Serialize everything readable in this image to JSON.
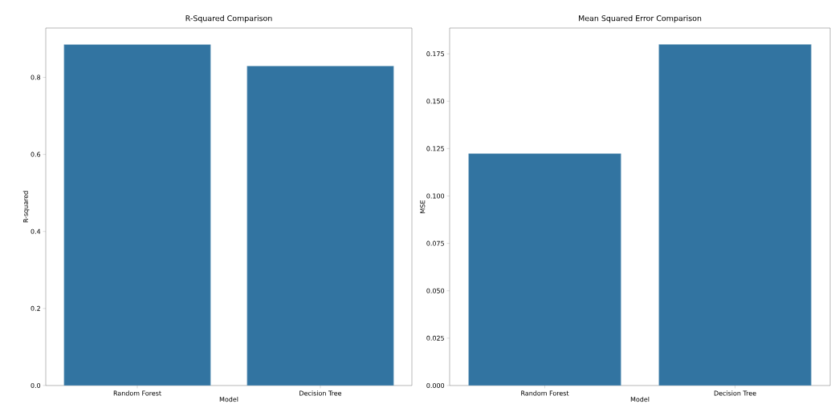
{
  "chart_data": [
    {
      "type": "bar",
      "title": "R-Squared Comparison",
      "xlabel": "Model",
      "ylabel": "R-squared",
      "categories": [
        "Random Forest",
        "Decision Tree"
      ],
      "values": [
        0.885,
        0.829
      ],
      "color": "#3274a1",
      "ylim": [
        0,
        0.928
      ],
      "yticks": [
        {
          "value": 0,
          "label": "0.0"
        },
        {
          "value": 0.2,
          "label": "0.2"
        },
        {
          "value": 0.4,
          "label": "0.4"
        },
        {
          "value": 0.6,
          "label": "0.6"
        },
        {
          "value": 0.8,
          "label": "0.8"
        }
      ],
      "grid": false
    },
    {
      "type": "bar",
      "title": "Mean Squared Error Comparison",
      "xlabel": "Model",
      "ylabel": "MSE",
      "categories": [
        "Random Forest",
        "Decision Tree"
      ],
      "values": [
        0.1223,
        0.1799
      ],
      "color": "#3274a1",
      "ylim": [
        0,
        0.1886
      ],
      "yticks": [
        {
          "value": 0,
          "label": "0.000"
        },
        {
          "value": 0.025,
          "label": "0.025"
        },
        {
          "value": 0.05,
          "label": "0.050"
        },
        {
          "value": 0.075,
          "label": "0.075"
        },
        {
          "value": 0.1,
          "label": "0.100"
        },
        {
          "value": 0.125,
          "label": "0.125"
        },
        {
          "value": 0.15,
          "label": "0.150"
        },
        {
          "value": 0.175,
          "label": "0.175"
        }
      ],
      "grid": false
    }
  ]
}
